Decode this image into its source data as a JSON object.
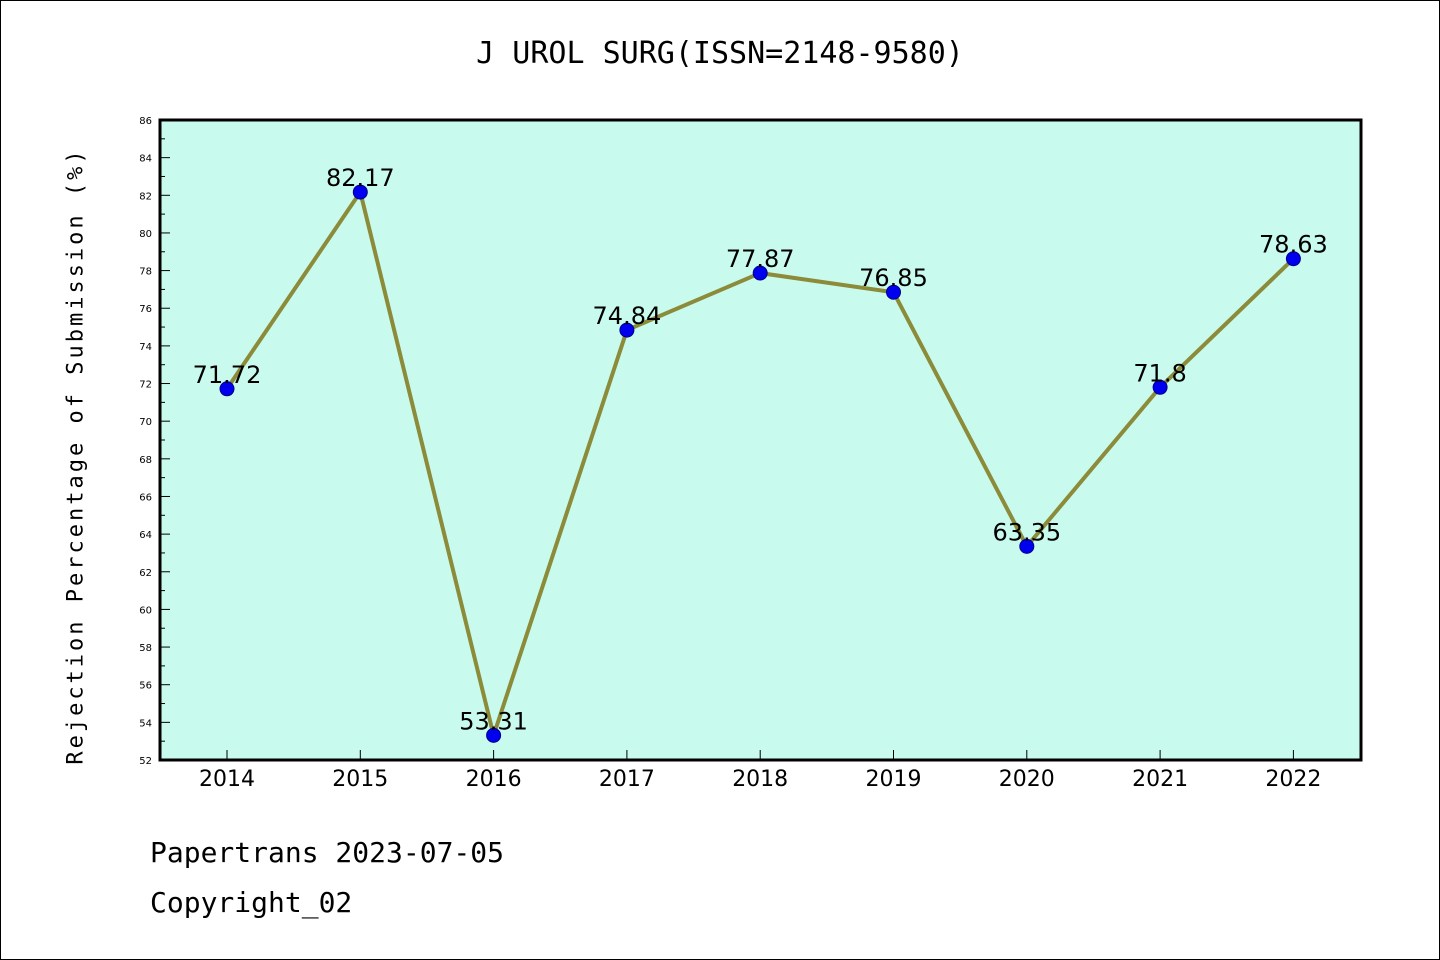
{
  "title": "J UROL SURG(ISSN=2148-9580)",
  "footer": {
    "line1": "Papertrans 2023-07-05",
    "line2": "Copyright_02"
  },
  "colors": {
    "plot_background": "#c8fbee",
    "line": "#8b8b3a",
    "marker": "#0000ee"
  },
  "chart_data": {
    "type": "line",
    "ylabel": "Rejection Percentage of Submission (%)",
    "xlabel": "",
    "categories": [
      "2014",
      "2015",
      "2016",
      "2017",
      "2018",
      "2019",
      "2020",
      "2021",
      "2022"
    ],
    "values": [
      71.72,
      82.17,
      53.31,
      74.84,
      77.87,
      76.85,
      63.35,
      71.8,
      78.63
    ],
    "data_labels": [
      "71.72",
      "82.17",
      "53.31",
      "74.84",
      "77.87",
      "76.85",
      "63.35",
      "71.8",
      "78.63"
    ],
    "ylim": [
      52,
      86
    ],
    "yticks": [
      52,
      54,
      56,
      58,
      60,
      62,
      64,
      66,
      68,
      70,
      72,
      74,
      76,
      78,
      80,
      82,
      84,
      86
    ],
    "grid": false,
    "legend": "none"
  }
}
